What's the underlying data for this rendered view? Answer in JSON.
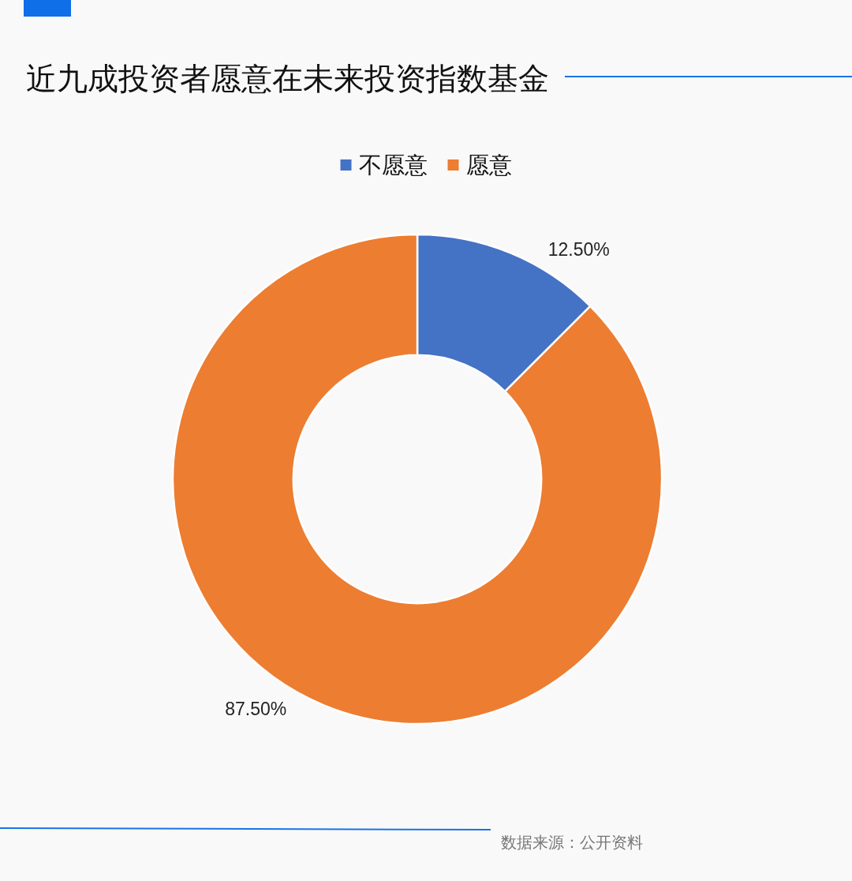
{
  "chart_data": {
    "type": "donut",
    "title": "近九成投资者愿意在未来投资指数基金",
    "categories": [
      "不愿意",
      "愿意"
    ],
    "values": [
      12.5,
      87.5
    ],
    "colors": [
      "#4472c4",
      "#ed7d31"
    ],
    "value_labels": [
      "12.50%",
      "87.50%"
    ],
    "legend": "top",
    "annotations": [
      "数据来源：公开资料"
    ]
  }
}
